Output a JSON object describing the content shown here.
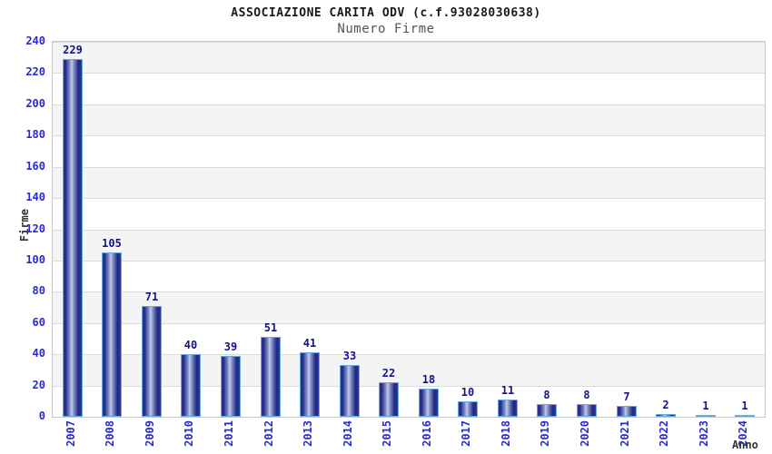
{
  "header": {
    "title": "ASSOCIAZIONE CARITA ODV (c.f.93028030638)",
    "subtitle": "Numero Firme"
  },
  "chart_data": {
    "type": "bar",
    "title": "ASSOCIAZIONE CARITA ODV (c.f.93028030638)",
    "subtitle": "Numero Firme",
    "xlabel": "Anno",
    "ylabel": "Firme",
    "categories": [
      "2007",
      "2008",
      "2009",
      "2010",
      "2011",
      "2012",
      "2013",
      "2014",
      "2015",
      "2016",
      "2017",
      "2018",
      "2019",
      "2020",
      "2021",
      "2022",
      "2023",
      "2024"
    ],
    "values": [
      229,
      105,
      71,
      40,
      39,
      51,
      41,
      33,
      22,
      18,
      10,
      11,
      8,
      8,
      7,
      2,
      1,
      1
    ],
    "ylim": [
      0,
      240
    ],
    "ytick_step": 20,
    "grid": "horizontal-bands-alternating",
    "legend": "none",
    "colors": {
      "tick_label": "#2a2ad2",
      "value_label": "#12128c",
      "axis_title": "#333333",
      "band_gray": "#f4f4f4",
      "band_white": "#ffffff",
      "gridline": "#dcdcdc",
      "plot_border": "#c8c8c8",
      "bar_border": "#6ba7e0",
      "bar_edge": "#2a3a9e",
      "bar_dark": "#1d2a80",
      "bar_mid": "#8f9ad0",
      "bar_light": "#c6cdea"
    }
  }
}
